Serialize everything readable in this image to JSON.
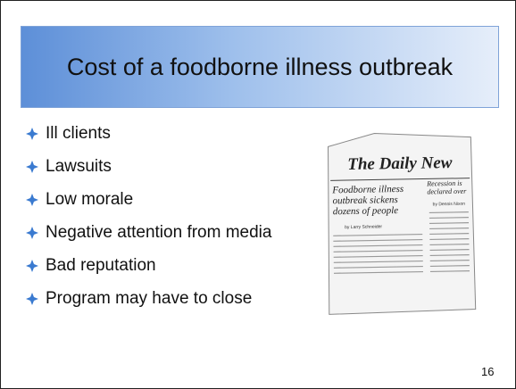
{
  "slide": {
    "title": "Cost of a foodborne illness outbreak",
    "bullets": [
      "Ill clients",
      "Lawsuits",
      "Low morale",
      "Negative attention from media",
      "Bad reputation",
      "Program may have to close"
    ],
    "newspaper": {
      "masthead": "The Daily New",
      "headline": "Foodborne illness outbreak sickens dozens of people",
      "byline": "by Larry Schneider",
      "side_headline": "Recession is declared over",
      "side_byline": "by Dennis Nixon"
    },
    "page_number": "16"
  }
}
